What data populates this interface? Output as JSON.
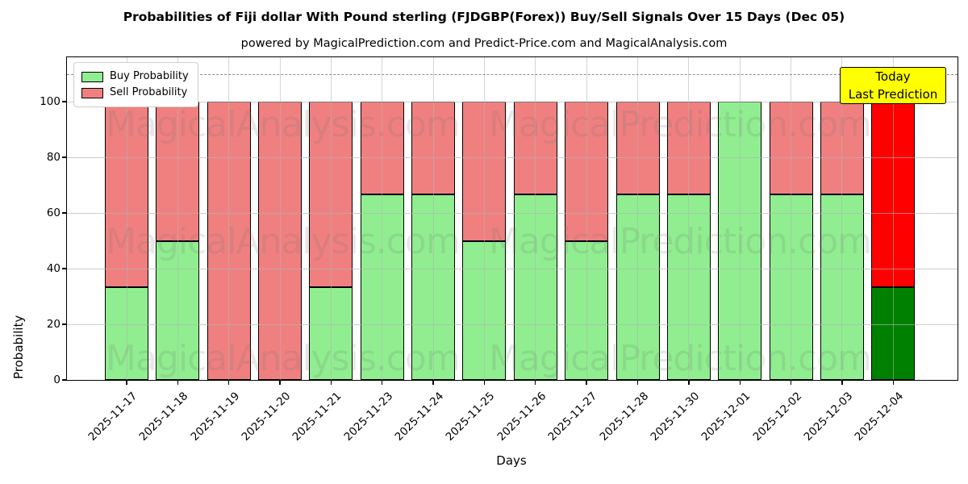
{
  "title": "Probabilities of Fiji dollar With Pound sterling (FJDGBP(Forex)) Buy/Sell Signals Over 15 Days (Dec 05)",
  "subtitle": "powered by MagicalPrediction.com and Predict-Price.com and MagicalAnalysis.com",
  "legend": {
    "buy_label": "Buy Probability",
    "sell_label": "Sell Probability"
  },
  "annotation": {
    "line1": "Today",
    "line2": "Last Prediction",
    "bg_color": "#ffff00"
  },
  "axes": {
    "ylabel": "Probability",
    "xlabel": "Days",
    "yticks": [
      0,
      20,
      40,
      60,
      80,
      100
    ]
  },
  "watermarks": {
    "left_text": "MagicalAnalysis.com",
    "right_text": "MagicalPrediction.com",
    "rows": 3
  },
  "chart_data": {
    "type": "bar",
    "stacked": true,
    "title": "Probabilities of Fiji dollar With Pound sterling (FJDGBP(Forex)) Buy/Sell Signals Over 15 Days (Dec 05)",
    "xlabel": "Days",
    "ylabel": "Probability",
    "ylim": [
      0,
      116
    ],
    "yticks": [
      0,
      20,
      40,
      60,
      80,
      100
    ],
    "dashed_line_y": 110,
    "grid": true,
    "legend_position": "upper left",
    "categories": [
      "2025-11-17",
      "2025-11-18",
      "2025-11-19",
      "2025-11-20",
      "2025-11-21",
      "2025-11-23",
      "2025-11-24",
      "2025-11-25",
      "2025-11-26",
      "2025-11-27",
      "2025-11-28",
      "2025-11-30",
      "2025-12-01",
      "2025-12-02",
      "2025-12-03",
      "2025-12-04"
    ],
    "series": [
      {
        "name": "Buy Probability",
        "color": "#90ee90",
        "today_color": "#008000",
        "values": [
          33.33,
          50,
          0,
          0,
          33.33,
          66.67,
          66.67,
          50,
          66.67,
          50,
          66.67,
          66.67,
          100,
          66.67,
          66.67,
          33.33
        ]
      },
      {
        "name": "Sell Probability",
        "color": "#f08080",
        "today_color": "#ff0000",
        "values": [
          66.67,
          50,
          100,
          100,
          66.67,
          33.33,
          33.33,
          50,
          33.33,
          50,
          33.33,
          33.33,
          0,
          33.33,
          33.33,
          66.67
        ]
      }
    ],
    "today_index": 15
  }
}
